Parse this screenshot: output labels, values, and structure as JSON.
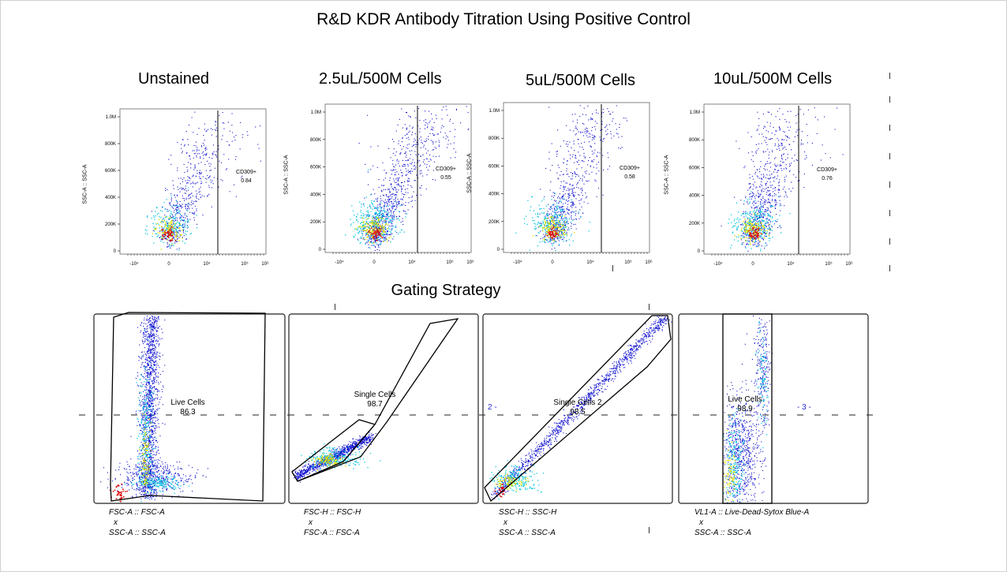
{
  "title": "R&D KDR Antibody Titration Using Positive Control",
  "section_title": "Gating Strategy",
  "y_axis_label": "SSC-A :: SSC-A",
  "colors": {
    "low": "#1010d0",
    "mid": "#10c8e0",
    "high": "#e0e000",
    "peak": "#e01010",
    "line": "#000000"
  },
  "chart_data": [
    {
      "type": "scatter",
      "title": "Unstained",
      "ylabel": "SSC-A :: SSC-A",
      "y_ticks": [
        "0",
        "200K",
        "400K",
        "600K",
        "800K",
        "1.0M"
      ],
      "x_ticks": [
        "-10⁴",
        "0",
        "10⁴",
        "10⁵",
        "10⁶"
      ],
      "gate": {
        "name": "CD309+",
        "value": "0.84"
      }
    },
    {
      "type": "scatter",
      "title": "2.5uL/500M Cells",
      "ylabel": "SSC-A :: SSC-A",
      "y_ticks": [
        "0",
        "200K",
        "400K",
        "600K",
        "800K",
        "1.0M"
      ],
      "x_ticks": [
        "-10⁴",
        "0",
        "10⁴",
        "10⁵",
        "10⁶"
      ],
      "gate": {
        "name": "CD309+",
        "value": "0.55"
      }
    },
    {
      "type": "scatter",
      "title": "5uL/500M Cells",
      "ylabel": "SSC-A :: SSC-A",
      "y_ticks": [
        "0",
        "200K",
        "400K",
        "600K",
        "800K",
        "1.0M"
      ],
      "x_ticks": [
        "-10⁴",
        "0",
        "10⁴",
        "10⁵",
        "10⁶"
      ],
      "gate": {
        "name": "CD309+",
        "value": "0.58"
      }
    },
    {
      "type": "scatter",
      "title": "10uL/500M Cells",
      "ylabel": "SSC-A :: SSC-A",
      "y_ticks": [
        "0",
        "200K",
        "400K",
        "600K",
        "800K",
        "1.0M"
      ],
      "x_ticks": [
        "-10⁴",
        "0",
        "10⁴",
        "10⁵",
        "10⁶"
      ],
      "gate": {
        "name": "CD309+",
        "value": "0.76"
      }
    },
    {
      "type": "scatter",
      "x_label": "FSC-A :: FSC-A",
      "times": "x",
      "y_label": "SSC-A :: SSC-A",
      "gate": {
        "name": "Live Cells",
        "value": "86.3"
      }
    },
    {
      "type": "scatter",
      "x_label": "FSC-H :: FSC-H",
      "times": "x",
      "y_label": "FSC-A :: FSC-A",
      "gate": {
        "name": "Single Cells",
        "value": "98.7"
      }
    },
    {
      "type": "scatter",
      "x_label": "SSC-H :: SSC-H",
      "times": "x",
      "y_label": "SSC-A :: SSC-A",
      "gate": {
        "name": "Single Cells 2",
        "value": "98.5"
      },
      "quad_label": "2 -"
    },
    {
      "type": "scatter",
      "x_label": "VL1-A :: Live-Dead-Sytox Blue-A",
      "times": "x",
      "y_label": "SSC-A :: SSC-A",
      "gate": {
        "name": "Live Cells",
        "value": "98.9"
      },
      "quad_label": "- 3 -"
    }
  ]
}
